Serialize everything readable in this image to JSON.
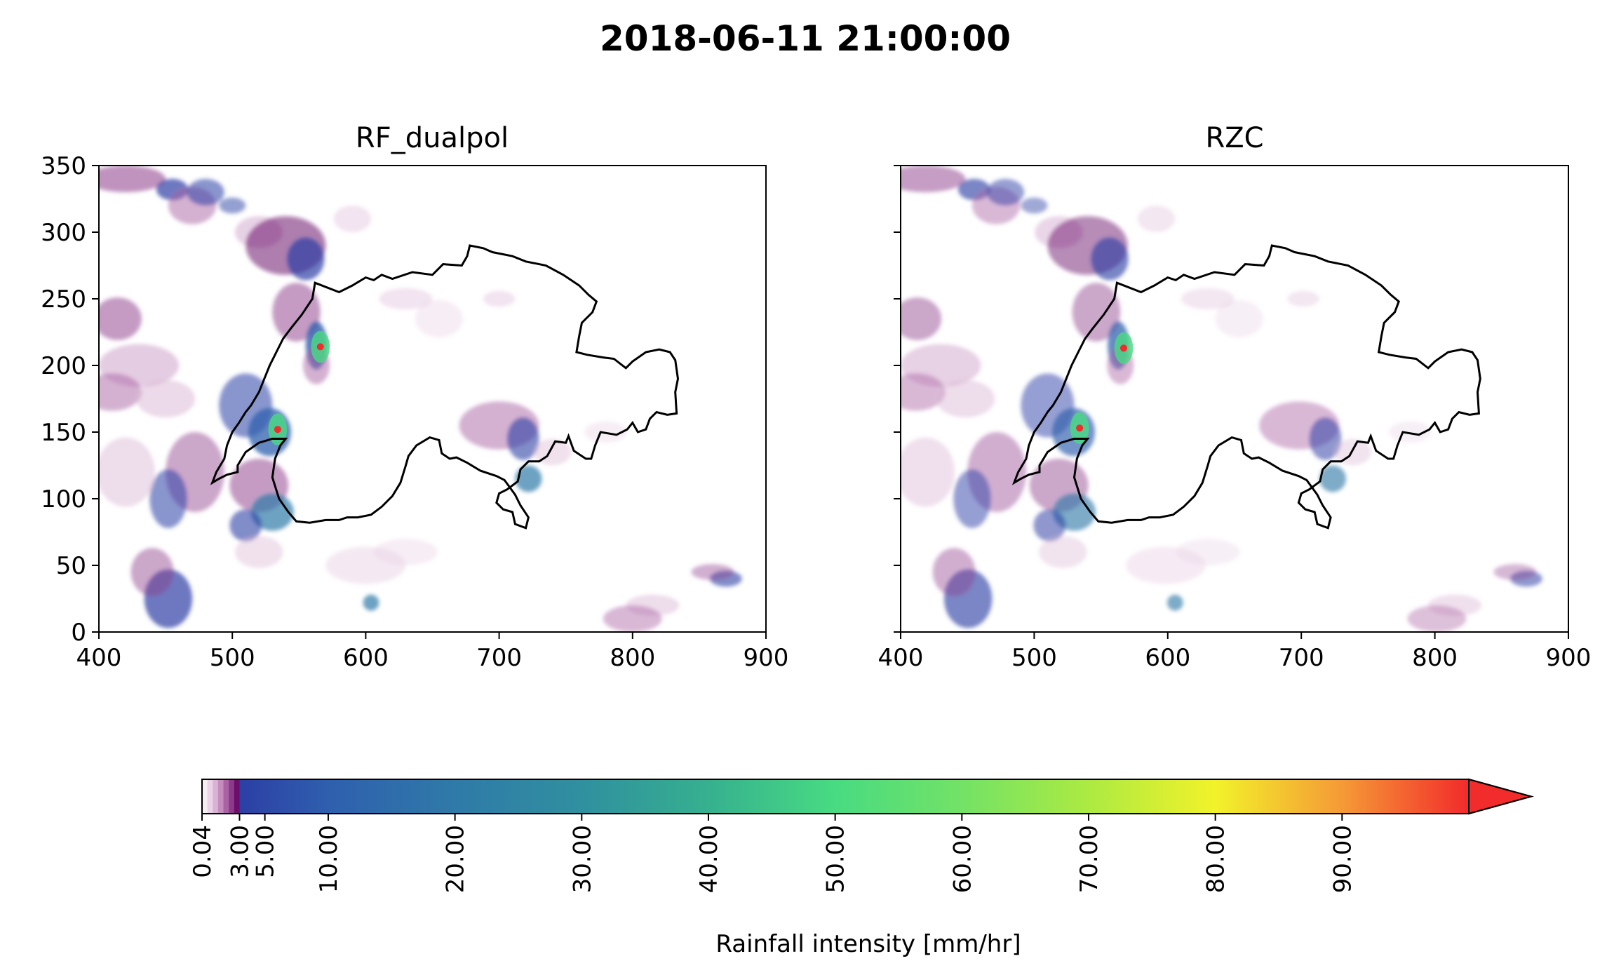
{
  "suptitle": "2018-06-11 21:00:00",
  "chart_data": [
    {
      "type": "heatmap",
      "title": "RF_dualpol",
      "xlabel": "",
      "ylabel": "",
      "xlim": [
        400,
        900
      ],
      "ylim": [
        0,
        350
      ],
      "xticks": [
        "400",
        "500",
        "600",
        "700",
        "800",
        "900"
      ],
      "yticks": [
        "0",
        "50",
        "100",
        "150",
        "200",
        "250",
        "300",
        "350"
      ],
      "grid": false,
      "max_cells": [
        {
          "x": 566,
          "y": 214,
          "value": 95
        },
        {
          "x": 534,
          "y": 152,
          "value": 92
        }
      ],
      "overlay": "country border outline (black)"
    },
    {
      "type": "heatmap",
      "title": "RZC",
      "xlabel": "",
      "ylabel": "",
      "xlim": [
        400,
        900
      ],
      "ylim": [
        0,
        350
      ],
      "xticks": [
        "400",
        "500",
        "600",
        "700",
        "800",
        "900"
      ],
      "yticks": [
        "0",
        "50",
        "100",
        "150",
        "200",
        "250",
        "300",
        "350"
      ],
      "grid": false,
      "max_cells": [
        {
          "x": 567,
          "y": 213,
          "value": 95
        },
        {
          "x": 534,
          "y": 153,
          "value": 88
        }
      ],
      "overlay": "country border outline (black)"
    }
  ],
  "colorbar": {
    "label": "Rainfall intensity [mm/hr]",
    "ticks": [
      "0.04",
      "3.00",
      "5.00",
      "10.00",
      "20.00",
      "30.00",
      "40.00",
      "50.00",
      "60.00",
      "70.00",
      "80.00",
      "90.00"
    ],
    "tick_values": [
      0.04,
      3,
      5,
      10,
      20,
      30,
      40,
      50,
      60,
      70,
      80,
      90
    ],
    "extend": "max",
    "low_colors": [
      "#f7eef5",
      "#ead3e6",
      "#d9b3d3",
      "#c48dbe",
      "#aa62a3",
      "#8c3a8a",
      "#6b0f6b"
    ],
    "stops": [
      {
        "v": 3,
        "c": "#2c3fa5"
      },
      {
        "v": 10,
        "c": "#2f5fae"
      },
      {
        "v": 20,
        "c": "#2f7aa8"
      },
      {
        "v": 30,
        "c": "#30909f"
      },
      {
        "v": 40,
        "c": "#36b08f"
      },
      {
        "v": 50,
        "c": "#48db82"
      },
      {
        "v": 60,
        "c": "#73e266"
      },
      {
        "v": 70,
        "c": "#acea42"
      },
      {
        "v": 80,
        "c": "#f2f22a"
      },
      {
        "v": 90,
        "c": "#f59a36"
      },
      {
        "v": 100,
        "c": "#f22b2b"
      }
    ]
  }
}
